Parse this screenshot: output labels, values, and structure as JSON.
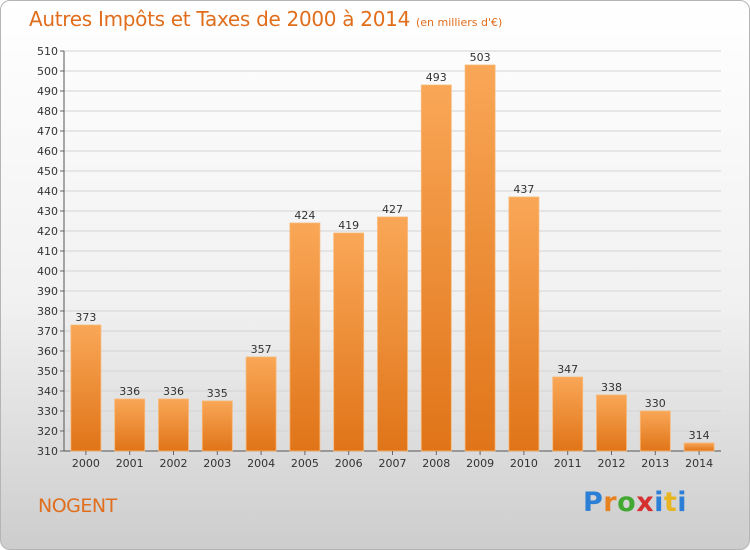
{
  "header": {
    "title": "Autres Impôts et Taxes de 2000 à 2014",
    "unit_note": "(en milliers d'€)"
  },
  "footer": {
    "place": "NOGENT",
    "logo": [
      "P",
      "r",
      "o",
      "x",
      "i",
      "t",
      "i"
    ]
  },
  "colors": {
    "bar_top": "#f9a757",
    "bar_bottom": "#e07418",
    "bar_edge": "#f8b877",
    "grid": "#d4d4d4",
    "title": "#e06e1c"
  },
  "chart_data": {
    "type": "bar",
    "categories": [
      "2000",
      "2001",
      "2002",
      "2003",
      "2004",
      "2005",
      "2006",
      "2007",
      "2008",
      "2009",
      "2010",
      "2011",
      "2012",
      "2013",
      "2014"
    ],
    "values": [
      373,
      336,
      336,
      335,
      357,
      424,
      419,
      427,
      493,
      503,
      437,
      347,
      338,
      330,
      314
    ],
    "title": "Autres Impôts et Taxes de 2000 à 2014",
    "subtitle": "(en milliers d'€)",
    "xlabel": "",
    "ylabel": "",
    "ylim": [
      310,
      510
    ],
    "ytick_step": 10,
    "grid": true,
    "data_labels": true,
    "legend": "none"
  }
}
